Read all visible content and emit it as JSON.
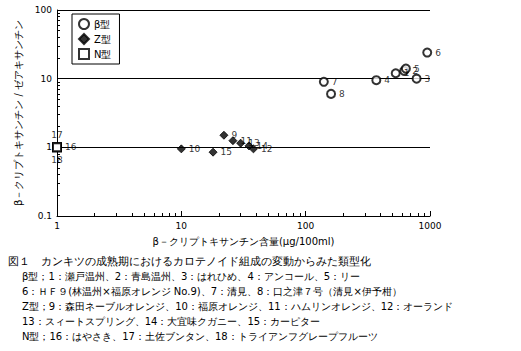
{
  "chart_data": {
    "type": "scatter",
    "log": true,
    "grid": "y",
    "legend": "upper left",
    "xlabel": "β－クリプトキサンチン含量(μg/100ml)",
    "ylabel": "β－クリプトキサンチン / ゼアキサンチン",
    "xlim": [
      1,
      1000
    ],
    "xticks": [
      1,
      10,
      100,
      1000
    ],
    "ylim": [
      0.1,
      100
    ],
    "yticks": [
      0.1,
      1,
      10,
      100
    ],
    "series": [
      {
        "name": "β型",
        "color": "#000000",
        "marker": "circle_open",
        "x": [
          530,
          620,
          780,
          370,
          640,
          950,
          140,
          160
        ],
        "values": [
          12,
          13,
          10,
          9.5,
          14,
          24,
          9,
          6
        ],
        "point_labels": [
          "1",
          "2",
          "3",
          "4",
          "5",
          "6",
          "7",
          "8"
        ]
      },
      {
        "name": "Z型",
        "color": "#000000",
        "marker": "diamond",
        "x": [
          22,
          10,
          26,
          38,
          30,
          35,
          18
        ],
        "values": [
          1.5,
          0.95,
          1.25,
          0.95,
          1.15,
          1.05,
          0.85
        ],
        "point_labels": [
          "9",
          "10",
          "11",
          "12",
          "13",
          "14",
          "15"
        ]
      },
      {
        "name": "N型",
        "color": "#000000",
        "marker": "square_open",
        "x": [
          1,
          1,
          1
        ],
        "values": [
          1,
          1,
          1
        ],
        "point_labels": [
          "17",
          "16",
          "18"
        ]
      }
    ],
    "caption": [
      "図１　カンキツの成熟期におけるカロテノイド組成の変動からみた類型化",
      "β型；1：瀬戸温州、2：青島温州、3：はれひめ、4：アンコール、5：リー",
      "6：ＨＦ９(林温州×福原オレンジ No.9)、7：清見、8：口之津７号（清見×伊予柑）",
      "Z型；9：森田ネーブルオレンジ、10：福原オレンジ、11：ハムリンオレンジ、12：オーランド",
      "13：スィートスプリング、14：大宜味クガニー、15：カーピター",
      "N型；16：はやさき、17：土佐ブンタン、18：トライアンフグレープフルーツ"
    ]
  }
}
